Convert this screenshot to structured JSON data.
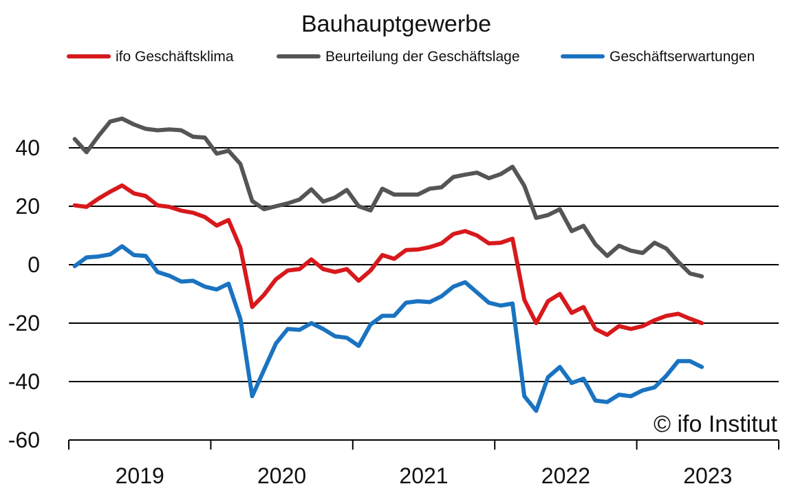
{
  "chart_data": {
    "type": "line",
    "title": "Bauhauptgewerbe",
    "xlabel": "",
    "ylabel": "",
    "ylim": [
      -60,
      60
    ],
    "yticks": [
      -60,
      -40,
      -20,
      0,
      20,
      40
    ],
    "ytick_labels": [
      "-60",
      "-40",
      "-20",
      "0",
      "20",
      "40"
    ],
    "x_start_year": 2018.5,
    "x_end_year": 2023.5,
    "xtick_labels": [
      "2019",
      "2020",
      "2021",
      "2022",
      "2023"
    ],
    "xtick_centers": [
      2019.0,
      2020.0,
      2021.0,
      2022.0,
      2023.0
    ],
    "gridlines": true,
    "legend_position": "top",
    "annotation": "© ifo Institut",
    "series": [
      {
        "name": "ifo Geschäftsklima",
        "color": "#d7191c",
        "values": [
          20.3,
          19.8,
          22.6,
          25.0,
          27.1,
          24.4,
          23.5,
          20.3,
          19.8,
          18.5,
          17.8,
          16.3,
          13.4,
          15.3,
          5.8,
          -14.5,
          -10.3,
          -5.0,
          -2.0,
          -1.5,
          1.8,
          -1.5,
          -2.5,
          -1.5,
          -5.5,
          -2.0,
          3.3,
          2.0,
          5.0,
          5.2,
          6.0,
          7.3,
          10.5,
          11.5,
          10.0,
          7.3,
          7.5,
          8.9,
          -12.0,
          -20.0,
          -12.5,
          -10.0,
          -16.5,
          -14.5,
          -22.0,
          -24.0,
          -21.0,
          -22.0,
          -21.0,
          -19.0,
          -17.5,
          -16.8,
          -18.5,
          -20.0
        ]
      },
      {
        "name": "Beurteilung der Geschäftslage",
        "color": "#555555",
        "values": [
          43.0,
          38.5,
          44.0,
          49.0,
          50.0,
          48.0,
          46.5,
          46.0,
          46.3,
          46.0,
          43.8,
          43.5,
          38.0,
          39.0,
          34.5,
          21.8,
          19.0,
          20.0,
          21.0,
          22.3,
          25.8,
          21.6,
          23.0,
          25.6,
          20.0,
          18.6,
          26.0,
          24.0,
          24.0,
          24.0,
          26.0,
          26.5,
          30.0,
          30.8,
          31.5,
          29.6,
          31.0,
          33.5,
          27.0,
          16.0,
          17.0,
          19.0,
          11.5,
          13.3,
          7.0,
          3.0,
          6.5,
          4.8,
          4.0,
          7.5,
          5.5,
          1.0,
          -3.0,
          -4.0
        ]
      },
      {
        "name": "Geschäftserwartungen",
        "color": "#1a73c0",
        "values": [
          -0.5,
          2.5,
          2.8,
          3.5,
          6.3,
          3.3,
          3.0,
          -2.5,
          -3.8,
          -5.8,
          -5.5,
          -7.5,
          -8.5,
          -6.5,
          -18.5,
          -45.0,
          -36.0,
          -27.0,
          -22.0,
          -22.3,
          -20.0,
          -22.0,
          -24.5,
          -25.0,
          -27.8,
          -20.5,
          -17.5,
          -17.5,
          -13.0,
          -12.5,
          -12.8,
          -10.8,
          -7.5,
          -6.0,
          -9.5,
          -13.0,
          -14.0,
          -13.3,
          -45.0,
          -50.0,
          -38.5,
          -35.0,
          -40.5,
          -39.0,
          -46.5,
          -47.0,
          -44.5,
          -45.0,
          -43.0,
          -42.0,
          -38.0,
          -33.0,
          -33.0,
          -35.0
        ]
      }
    ]
  }
}
